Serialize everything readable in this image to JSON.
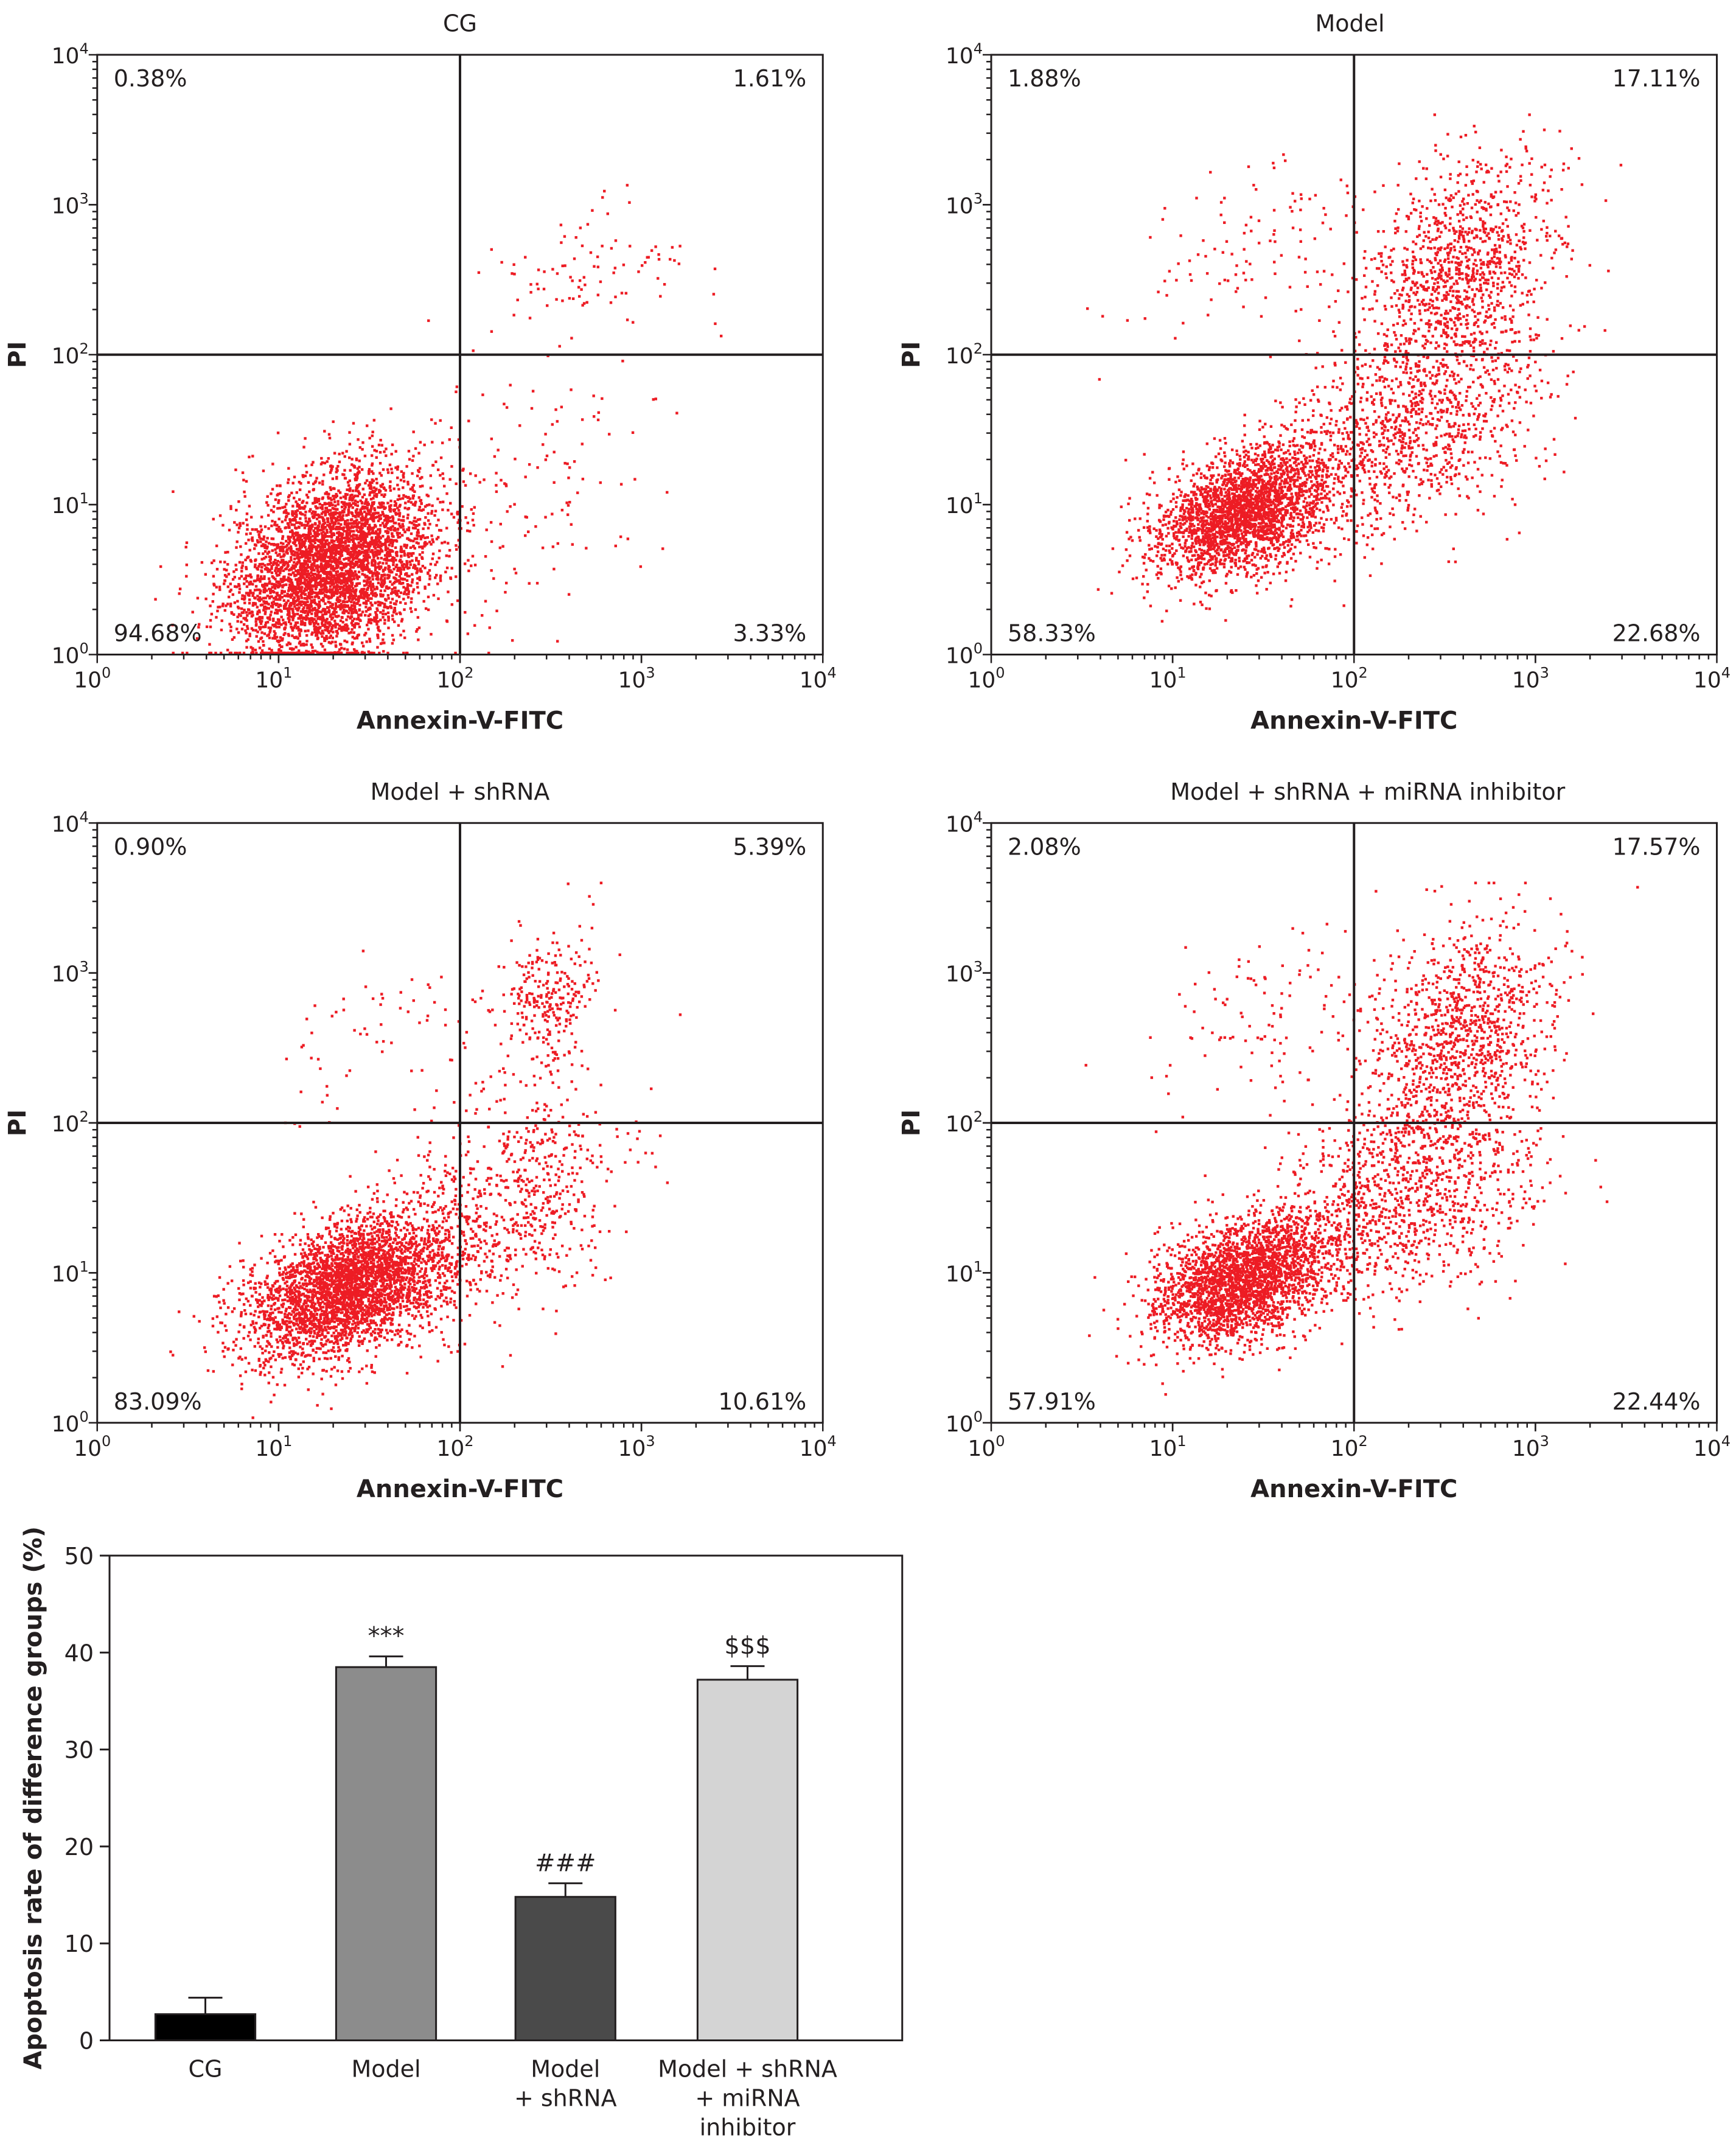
{
  "chart_data": [
    {
      "type": "scatter",
      "title": "CG",
      "xlabel": "Annexin-V-FITC",
      "ylabel": "PI",
      "scale": "log",
      "xlim": [
        1,
        10000
      ],
      "ylim": [
        1,
        10000
      ],
      "gate": {
        "x": 100,
        "y": 100
      },
      "tick_labels": [
        "10",
        "0",
        "10",
        "1",
        "10",
        "2",
        "10",
        "3",
        "10",
        "4"
      ],
      "quadrants": {
        "upper_left": "0.38%",
        "upper_right": "1.61%",
        "lower_left": "94.68%",
        "lower_right": "3.33%"
      },
      "populations": [
        {
          "cx": 20,
          "cy": 4,
          "spread_x": 0.28,
          "spread_y": 0.3,
          "n": 4200
        },
        {
          "cx": 200,
          "cy": 12,
          "spread_x": 0.45,
          "spread_y": 0.45,
          "n": 160
        },
        {
          "cx": 500,
          "cy": 350,
          "spread_x": 0.3,
          "spread_y": 0.2,
          "n": 90
        }
      ]
    },
    {
      "type": "scatter",
      "title": "Model",
      "xlabel": "Annexin-V-FITC",
      "ylabel": "PI",
      "scale": "log",
      "xlim": [
        1,
        10000
      ],
      "ylim": [
        1,
        10000
      ],
      "gate": {
        "x": 100,
        "y": 100
      },
      "tick_labels": [
        "10",
        "0",
        "10",
        "1",
        "10",
        "2",
        "10",
        "3",
        "10",
        "4"
      ],
      "quadrants": {
        "upper_left": "1.88%",
        "upper_right": "17.11%",
        "lower_left": "58.33%",
        "lower_right": "22.68%"
      },
      "populations": [
        {
          "cx": 25,
          "cy": 9,
          "spread_x": 0.25,
          "spread_y": 0.2,
          "n": 2600
        },
        {
          "cx": 200,
          "cy": 35,
          "spread_x": 0.35,
          "spread_y": 0.35,
          "n": 1100
        },
        {
          "cx": 400,
          "cy": 400,
          "spread_x": 0.25,
          "spread_y": 0.35,
          "n": 1000
        },
        {
          "cx": 30,
          "cy": 500,
          "spread_x": 0.35,
          "spread_y": 0.3,
          "n": 110
        }
      ]
    },
    {
      "type": "scatter",
      "title": "Model + shRNA",
      "xlabel": "Annexin-V-FITC",
      "ylabel": "PI",
      "scale": "log",
      "xlim": [
        1,
        10000
      ],
      "ylim": [
        1,
        10000
      ],
      "gate": {
        "x": 100,
        "y": 100
      },
      "tick_labels": [
        "10",
        "0",
        "10",
        "1",
        "10",
        "2",
        "10",
        "3",
        "10",
        "4"
      ],
      "quadrants": {
        "upper_left": "0.90%",
        "upper_right": "5.39%",
        "lower_left": "83.09%",
        "lower_right": "10.61%"
      },
      "populations": [
        {
          "cx": 25,
          "cy": 8,
          "spread_x": 0.28,
          "spread_y": 0.22,
          "n": 3400
        },
        {
          "cx": 200,
          "cy": 30,
          "spread_x": 0.3,
          "spread_y": 0.35,
          "n": 650
        },
        {
          "cx": 300,
          "cy": 600,
          "spread_x": 0.15,
          "spread_y": 0.25,
          "n": 280
        },
        {
          "cx": 30,
          "cy": 300,
          "spread_x": 0.3,
          "spread_y": 0.25,
          "n": 60
        }
      ]
    },
    {
      "type": "scatter",
      "title": "Model + shRNA + miRNA inhibitor",
      "xlabel": "Annexin-V-FITC",
      "ylabel": "PI",
      "scale": "log",
      "xlim": [
        1,
        10000
      ],
      "ylim": [
        1,
        10000
      ],
      "gate": {
        "x": 100,
        "y": 100
      },
      "tick_labels": [
        "10",
        "0",
        "10",
        "1",
        "10",
        "2",
        "10",
        "3",
        "10",
        "4"
      ],
      "quadrants": {
        "upper_left": "2.08%",
        "upper_right": "17.57%",
        "lower_left": "57.91%",
        "lower_right": "22.44%"
      },
      "populations": [
        {
          "cx": 25,
          "cy": 9,
          "spread_x": 0.25,
          "spread_y": 0.2,
          "n": 2600
        },
        {
          "cx": 200,
          "cy": 35,
          "spread_x": 0.35,
          "spread_y": 0.35,
          "n": 1100
        },
        {
          "cx": 400,
          "cy": 400,
          "spread_x": 0.25,
          "spread_y": 0.35,
          "n": 1000
        },
        {
          "cx": 30,
          "cy": 500,
          "spread_x": 0.35,
          "spread_y": 0.3,
          "n": 110
        }
      ]
    },
    {
      "type": "bar",
      "ylabel": "Apoptosis rate of difference groups (%)",
      "ylim": [
        0,
        50
      ],
      "yticks": [
        0,
        10,
        20,
        30,
        40,
        50
      ],
      "categories": [
        [
          "CG"
        ],
        [
          "Model"
        ],
        [
          "Model",
          "+ shRNA"
        ],
        [
          "Model + shRNA",
          "+ miRNA",
          "inhibitor"
        ]
      ],
      "values": [
        2.7,
        38.5,
        14.8,
        37.2
      ],
      "errors": [
        1.7,
        1.1,
        1.4,
        1.4
      ],
      "annotations": [
        "",
        "***",
        "###",
        "$$$"
      ],
      "colors": [
        "#000000",
        "#8c8c8c",
        "#4a4a4a",
        "#d4d4d4"
      ]
    }
  ]
}
